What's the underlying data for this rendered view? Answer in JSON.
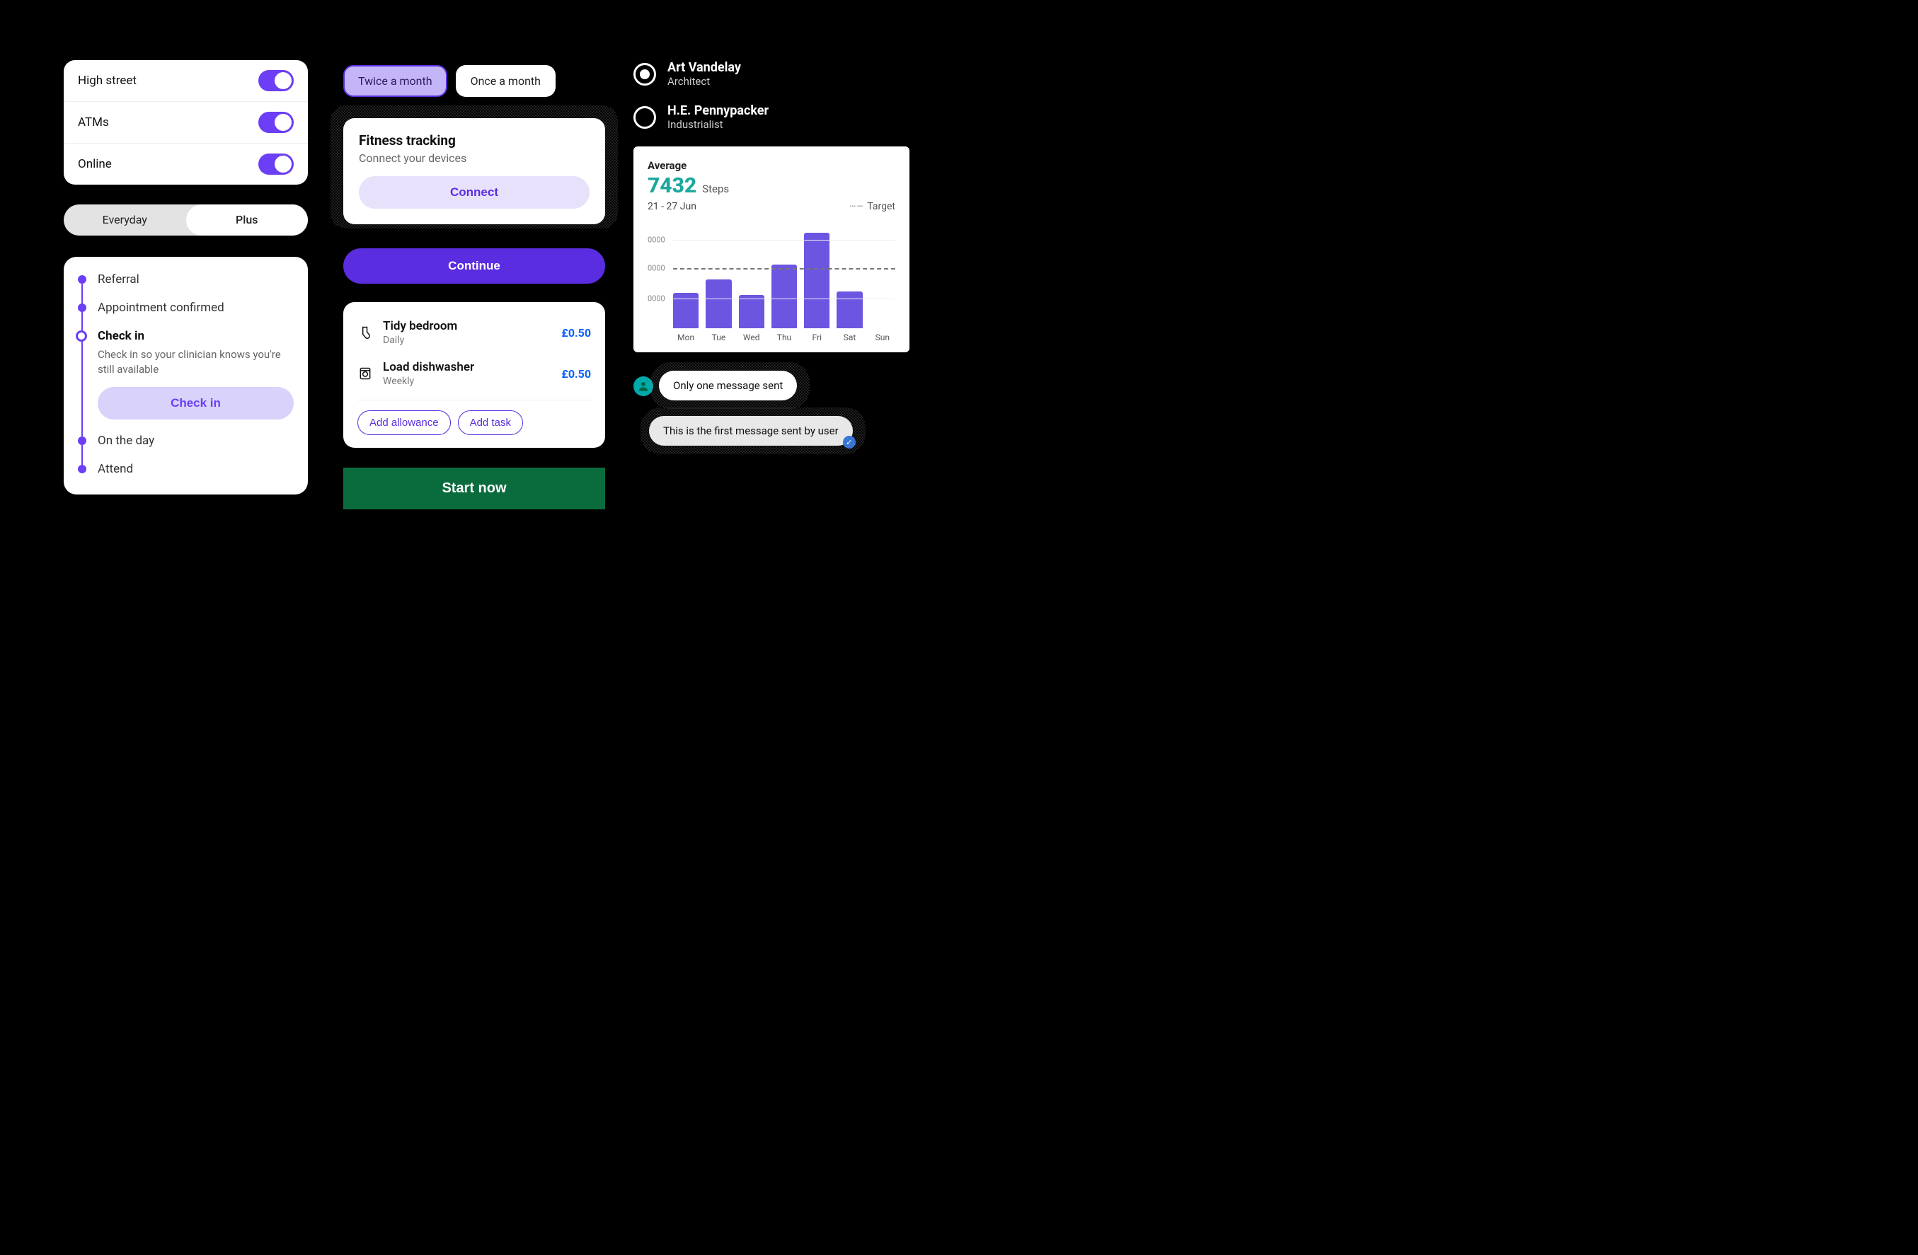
{
  "toggles": {
    "items": [
      {
        "label": "High street",
        "on": true
      },
      {
        "label": "ATMs",
        "on": true
      },
      {
        "label": "Online",
        "on": true
      }
    ],
    "on_color": "#6c3ef5"
  },
  "segmented": {
    "items": [
      {
        "label": "Everyday",
        "active": false
      },
      {
        "label": "Plus",
        "active": true
      }
    ]
  },
  "stepper": {
    "accent": "#6c3ef5",
    "steps": [
      {
        "title": "Referral"
      },
      {
        "title": "Appointment confirmed"
      },
      {
        "title": "Check in",
        "current": true,
        "desc": "Check in so your clinician knows you're still available",
        "button": "Check in"
      },
      {
        "title": "On the day"
      },
      {
        "title": "Attend"
      }
    ]
  },
  "chips": {
    "selected_bg": "#c3b5f7",
    "selected_border": "#5a2de0",
    "items": [
      {
        "label": "Twice a month",
        "selected": true
      },
      {
        "label": "Once a month",
        "selected": false
      }
    ]
  },
  "fitness": {
    "title": "Fitness tracking",
    "subtitle": "Connect your devices",
    "button": "Connect",
    "button_bg": "#e7e1fb",
    "button_fg": "#5a2de0"
  },
  "continue_button": {
    "label": "Continue",
    "bg": "#5a2de0",
    "fg": "#ffffff"
  },
  "tasks": {
    "items": [
      {
        "icon": "sock",
        "name": "Tidy bedroom",
        "freq": "Daily",
        "price": "£0.50"
      },
      {
        "icon": "washer",
        "name": "Load dishwasher",
        "freq": "Weekly",
        "price": "£0.50"
      }
    ],
    "price_color": "#0a5fff",
    "actions": [
      {
        "label": "Add allowance"
      },
      {
        "label": "Add task"
      }
    ],
    "outline_color": "#5a2de0"
  },
  "start_button": {
    "label": "Start now",
    "bg": "#0a6b3d",
    "fg": "#ffffff"
  },
  "users": {
    "items": [
      {
        "name": "Art Vandelay",
        "role": "Architect",
        "checked": true
      },
      {
        "name": "H.E. Pennypacker",
        "role": "Industrialist",
        "checked": false
      }
    ]
  },
  "steps_chart": {
    "type": "bar",
    "avg_label": "Average",
    "value": "7432",
    "unit": "Steps",
    "range": "21 - 27 Jun",
    "target_label": "Target",
    "value_color": "#1aa89e",
    "bar_color": "#6c55e0",
    "background_color": "#ffffff",
    "grid_color": "#eeeeee",
    "target_line_color": "#777777",
    "categories": [
      "Mon",
      "Tue",
      "Wed",
      "Thu",
      "Fri",
      "Sat",
      "Sun"
    ],
    "values": [
      40,
      55,
      38,
      72,
      108,
      42,
      0
    ],
    "ylim": [
      0,
      120
    ],
    "target_y": 68,
    "ytick_labels": [
      "0000",
      "0000",
      "0000"
    ],
    "ytick_positions": [
      34,
      68,
      100
    ],
    "label_fontsize": 12
  },
  "chat": {
    "avatar_bg": "#0aa89e",
    "messages": [
      {
        "text": "Only one message sent",
        "style": "white"
      },
      {
        "text": "This is the first message sent by user",
        "style": "gray",
        "check": true
      }
    ]
  }
}
